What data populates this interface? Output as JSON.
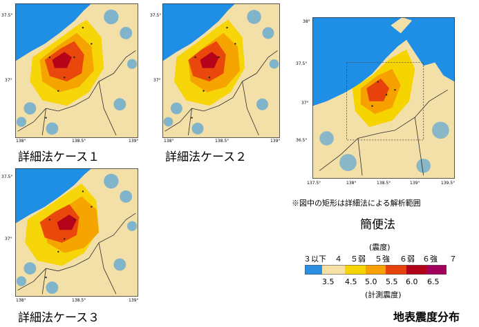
{
  "panels": [
    {
      "id": "case1",
      "caption": "詳細法ケース１",
      "yticks": [
        "37.5°",
        "37°"
      ],
      "xticks": [
        "138°",
        "138.5°",
        "139°"
      ]
    },
    {
      "id": "case2",
      "caption": "詳細法ケース２",
      "yticks": [
        "37.5°",
        "37°"
      ],
      "xticks": [
        "138°",
        "138.5°",
        "139°"
      ]
    },
    {
      "id": "case3",
      "caption": "詳細法ケース３",
      "yticks": [
        "37.5°",
        "37°"
      ],
      "xticks": [
        "138°",
        "138.5°",
        "139°"
      ]
    },
    {
      "id": "simple",
      "caption": "簡便法",
      "yticks": [
        "38°",
        "37.5°",
        "37°",
        "36.5°"
      ],
      "xticks": [
        "137.5°",
        "138°",
        "138.5°",
        "139°",
        "139.5°"
      ]
    }
  ],
  "note": "※図中の矩形は詳細法による解析範囲",
  "legend": {
    "top_caption": "(震度)",
    "intensity_labels": [
      "３以下",
      "４",
      "５弱",
      "５強",
      "６弱",
      "６強",
      "７"
    ],
    "boundary_values": [
      "3.5",
      "4.5",
      "5.0",
      "5.5",
      "6.0",
      "6.5"
    ],
    "bottom_caption": "(計測震度)",
    "colors": [
      "#2a8fe0",
      "#f7e0a6",
      "#f5d400",
      "#f6a100",
      "#e8420c",
      "#b3001a",
      "#a3005e"
    ]
  },
  "title": "地表震度分布",
  "colors": {
    "sea": "#1f8fe6",
    "land": "#f3dfa8",
    "border": "#2a2a2a"
  }
}
